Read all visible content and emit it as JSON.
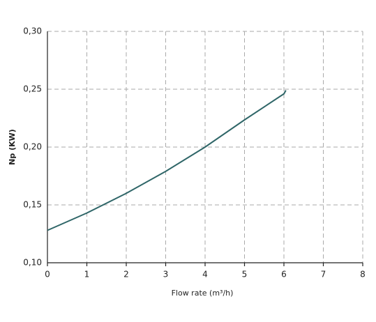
{
  "chart_data": {
    "type": "line",
    "x_label": "Flow rate (m³/h)",
    "y_label": "Np (KW)",
    "x": [
      0,
      1,
      2,
      3,
      4,
      5,
      6,
      6.05
    ],
    "series": [
      {
        "name": "Np",
        "color": "#2f6668",
        "values": [
          0.128,
          0.143,
          0.16,
          0.179,
          0.2,
          0.2235,
          0.246,
          0.249
        ]
      }
    ],
    "xlim": [
      0,
      8
    ],
    "xticks": [
      0,
      1,
      2,
      3,
      4,
      5,
      6,
      7,
      8
    ],
    "ylim": [
      0.1,
      0.3
    ],
    "yticks": [
      {
        "value": 0.1,
        "label": "0,10"
      },
      {
        "value": 0.15,
        "label": "0,15"
      },
      {
        "value": 0.2,
        "label": "0,20"
      },
      {
        "value": 0.25,
        "label": "0,25"
      },
      {
        "value": 0.3,
        "label": "0,30"
      }
    ],
    "grid": true
  }
}
